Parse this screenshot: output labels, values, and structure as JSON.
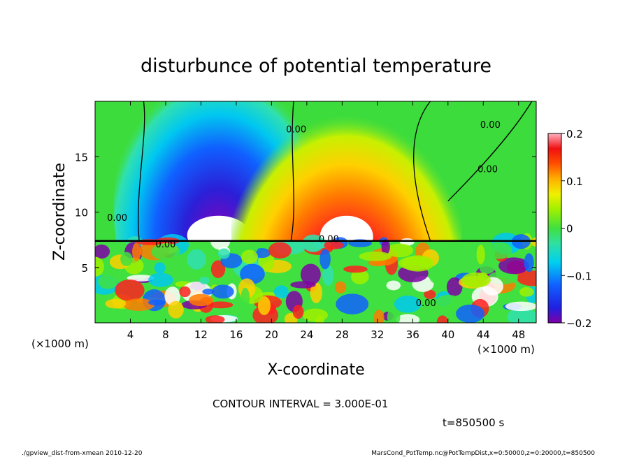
{
  "chart_data": {
    "type": "heatmap",
    "title": "disturbunce of potential temperature",
    "xlabel": "X-coordinate",
    "ylabel": "Z-coordinate",
    "x_unit": "(×1000 m)",
    "z_unit": "(×1000 m)",
    "xlim": [
      0,
      50
    ],
    "zlim": [
      0,
      20
    ],
    "x_ticks": [
      4,
      8,
      12,
      16,
      20,
      24,
      28,
      32,
      36,
      40,
      44,
      48
    ],
    "z_ticks": [
      5,
      10,
      15
    ],
    "colorbar": {
      "range": [
        -0.2,
        0.2
      ],
      "ticks": [
        "0.2",
        "0.1",
        "0",
        "−0.1",
        "−0.2"
      ],
      "tick_values": [
        0.2,
        0.1,
        0,
        -0.1,
        -0.2
      ]
    },
    "upper_layer_features": [
      {
        "x_center": 14,
        "z_center": 11,
        "value": -0.22,
        "note": "cold anomaly"
      },
      {
        "x_center": 28.5,
        "z_center": 10.5,
        "value": 0.22,
        "note": "warm anomaly"
      }
    ],
    "interface_height_z": 7.4,
    "contour_labels": [
      "0.00",
      "0.00",
      "0.00",
      "0.00",
      "0.00",
      "0.00",
      "0.00"
    ],
    "contour_interval": "CONTOUR INTERVAL = 3.000E-01",
    "time_label": "t=850500 s"
  },
  "footer": {
    "left": "./gpview_dist-from-xmean  2010-12-20",
    "right": "MarsCond_PotTemp.nc@PotTempDist,x=0:50000,z=0:20000,t=850500"
  },
  "colors": {
    "cold_core": "#7f00b0",
    "warm_core": "#ffffff",
    "neutral": "#3cdc3c"
  }
}
